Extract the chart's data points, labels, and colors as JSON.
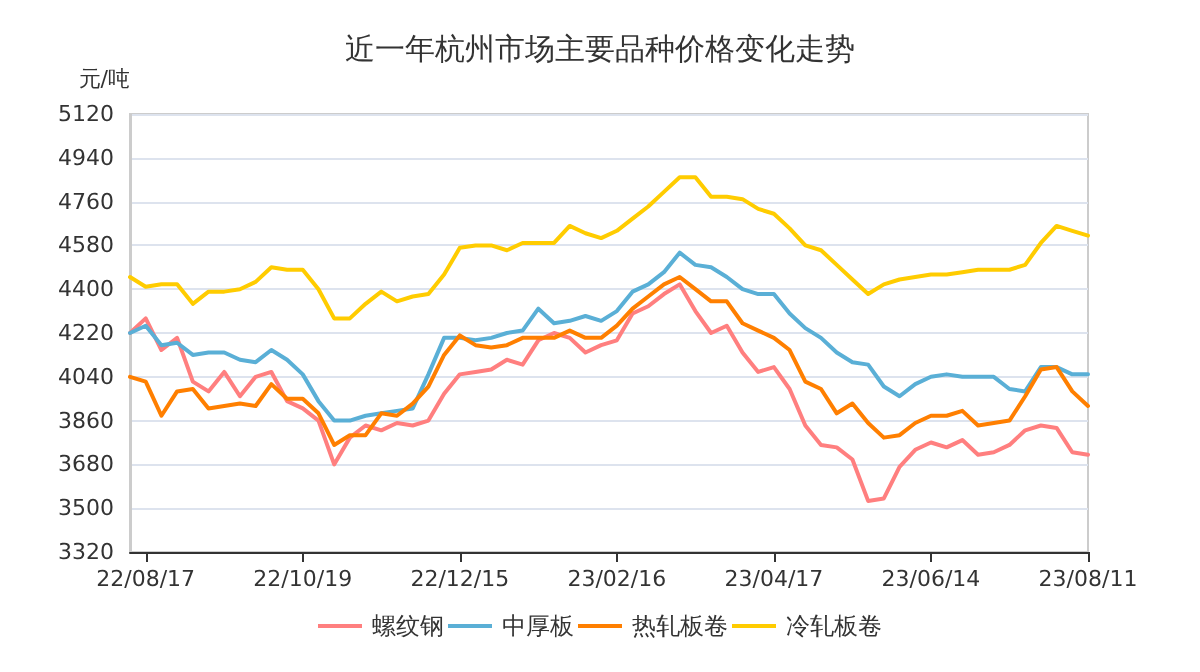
{
  "chart_data": {
    "type": "line",
    "title": "近一年杭州市场主要品种价格变化走势",
    "ylabel": "元/吨",
    "categories": [
      null,
      "22/08/17",
      null,
      null,
      null,
      null,
      null,
      null,
      null,
      null,
      null,
      "22/10/19",
      null,
      null,
      null,
      null,
      null,
      null,
      null,
      null,
      null,
      "22/12/15",
      null,
      null,
      null,
      null,
      null,
      null,
      null,
      null,
      null,
      "23/02/16",
      null,
      null,
      null,
      null,
      null,
      null,
      null,
      null,
      null,
      "23/04/17",
      null,
      null,
      null,
      null,
      null,
      null,
      null,
      null,
      null,
      "23/06/14",
      null,
      null,
      null,
      null,
      null,
      null,
      null,
      null,
      null,
      "23/08/11"
    ],
    "series": [
      {
        "name": "螺纹钢",
        "color": "#ff7f7f",
        "values": [
          4220,
          4280,
          4150,
          4200,
          4020,
          3980,
          4060,
          3960,
          4040,
          4060,
          3940,
          3910,
          3860,
          3680,
          3790,
          3840,
          3820,
          3850,
          3840,
          3860,
          3970,
          4050,
          4060,
          4070,
          4110,
          4090,
          4190,
          4220,
          4200,
          4140,
          4170,
          4190,
          4300,
          4330,
          4380,
          4420,
          4310,
          4220,
          4250,
          4140,
          4060,
          4080,
          3990,
          3840,
          3760,
          3750,
          3700,
          3530,
          3540,
          3670,
          3740,
          3770,
          3750,
          3780,
          3720,
          3730,
          3760,
          3820,
          3840,
          3830,
          3730,
          3720
        ]
      },
      {
        "name": "中厚板",
        "color": "#5aafd6",
        "values": [
          4220,
          4250,
          4170,
          4180,
          4130,
          4140,
          4140,
          4110,
          4100,
          4150,
          4110,
          4050,
          3940,
          3860,
          3860,
          3880,
          3890,
          3900,
          3910,
          4050,
          4200,
          4200,
          4190,
          4200,
          4220,
          4230,
          4320,
          4260,
          4270,
          4290,
          4270,
          4310,
          4390,
          4420,
          4470,
          4550,
          4500,
          4490,
          4450,
          4400,
          4380,
          4380,
          4300,
          4240,
          4200,
          4140,
          4100,
          4090,
          4000,
          3960,
          4010,
          4040,
          4050,
          4040,
          4040,
          4040,
          3990,
          3980,
          4080,
          4080,
          4050,
          4050
        ]
      },
      {
        "name": "热轧板卷",
        "color": "#ff7f00",
        "values": [
          4040,
          4020,
          3880,
          3980,
          3990,
          3910,
          3920,
          3930,
          3920,
          4010,
          3950,
          3950,
          3890,
          3760,
          3800,
          3800,
          3890,
          3880,
          3930,
          4000,
          4130,
          4210,
          4170,
          4160,
          4170,
          4200,
          4200,
          4200,
          4230,
          4200,
          4200,
          4250,
          4320,
          4370,
          4420,
          4450,
          4400,
          4350,
          4350,
          4260,
          4230,
          4200,
          4150,
          4020,
          3990,
          3890,
          3930,
          3850,
          3790,
          3800,
          3850,
          3880,
          3880,
          3900,
          3840,
          3850,
          3860,
          3960,
          4070,
          4080,
          3980,
          3920
        ]
      },
      {
        "name": "冷轧板卷",
        "color": "#ffcc00",
        "values": [
          4450,
          4410,
          4420,
          4420,
          4340,
          4390,
          4390,
          4400,
          4430,
          4490,
          4480,
          4480,
          4400,
          4280,
          4280,
          4340,
          4390,
          4350,
          4370,
          4380,
          4460,
          4570,
          4580,
          4580,
          4560,
          4590,
          4590,
          4590,
          4660,
          4630,
          4610,
          4640,
          4690,
          4740,
          4800,
          4860,
          4860,
          4780,
          4780,
          4770,
          4730,
          4710,
          4650,
          4580,
          4560,
          4500,
          4440,
          4380,
          4420,
          4440,
          4450,
          4460,
          4460,
          4470,
          4480,
          4480,
          4480,
          4500,
          4590,
          4660,
          4640,
          4620
        ]
      }
    ],
    "ylim": [
      3320,
      5120
    ],
    "yticks": [
      3320,
      3500,
      3680,
      3860,
      4040,
      4220,
      4400,
      4580,
      4760,
      4940,
      5120
    ],
    "grid": "y",
    "legend": "bottom",
    "marker": "none",
    "line_style": "solid"
  }
}
